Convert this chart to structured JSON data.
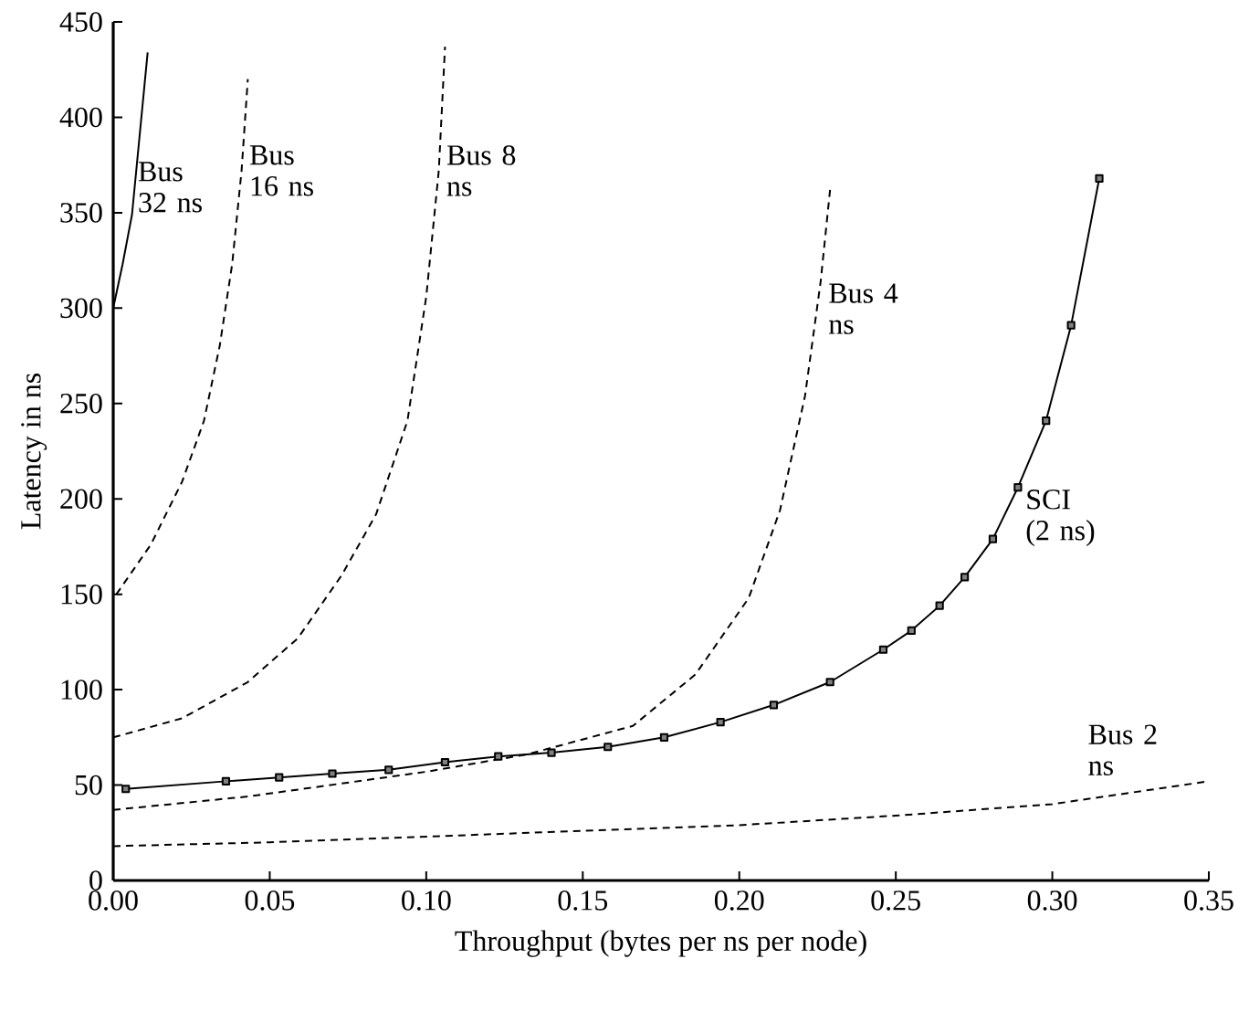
{
  "chart_data": {
    "type": "line",
    "xlabel": "Throughput (bytes per ns per node)",
    "ylabel": "Latency in ns",
    "xlim": [
      0,
      0.35
    ],
    "ylim": [
      0,
      450
    ],
    "xticks": [
      {
        "value": 0,
        "label": "0.00"
      },
      {
        "value": 0.05,
        "label": "0.05"
      },
      {
        "value": 0.1,
        "label": "0.10"
      },
      {
        "value": 0.15,
        "label": "0.15"
      },
      {
        "value": 0.2,
        "label": "0.20"
      },
      {
        "value": 0.25,
        "label": "0.25"
      },
      {
        "value": 0.3,
        "label": "0.30"
      },
      {
        "value": 0.35,
        "label": "0.35"
      }
    ],
    "yticks": [
      0,
      50,
      100,
      150,
      200,
      250,
      300,
      350,
      400,
      450
    ],
    "grid": false,
    "legend": false,
    "series": [
      {
        "name": "Bus 32 ns",
        "color": "#000000",
        "line_style": "solid",
        "marker": "none",
        "x": [
          0,
          0.003,
          0.006,
          0.011
        ],
        "values": [
          300,
          323,
          349,
          434
        ]
      },
      {
        "name": "Bus 16 ns",
        "color": "#000000",
        "line_style": "dashed",
        "marker": "none",
        "x": [
          0.001,
          0.012,
          0.022,
          0.029,
          0.034,
          0.038,
          0.041,
          0.043
        ],
        "values": [
          150,
          176,
          209,
          241,
          280,
          323,
          372,
          420
        ]
      },
      {
        "name": "Bus 8 ns",
        "color": "#000000",
        "line_style": "dashed",
        "marker": "none",
        "x": [
          0,
          0.022,
          0.043,
          0.059,
          0.073,
          0.084,
          0.094,
          0.1,
          0.104,
          0.106
        ],
        "values": [
          75,
          85,
          104,
          127,
          160,
          192,
          241,
          306,
          372,
          437
        ]
      },
      {
        "name": "Bus 4 ns",
        "color": "#000000",
        "line_style": "dashed",
        "marker": "none",
        "x": [
          0,
          0.043,
          0.1,
          0.132,
          0.166,
          0.186,
          0.203,
          0.213,
          0.221,
          0.226,
          0.229
        ],
        "values": [
          37,
          44,
          57,
          66,
          81,
          108,
          148,
          194,
          254,
          314,
          362
        ]
      },
      {
        "name": "Bus 2 ns",
        "color": "#000000",
        "line_style": "dashed",
        "marker": "none",
        "x": [
          0,
          0.05,
          0.1,
          0.15,
          0.2,
          0.25,
          0.3,
          0.35
        ],
        "values": [
          18,
          20,
          23,
          26,
          29,
          34,
          40,
          52
        ]
      },
      {
        "name": "SCI (2 ns)",
        "color": "#000000",
        "line_style": "solid",
        "marker": "square",
        "x": [
          0.004,
          0.036,
          0.053,
          0.07,
          0.088,
          0.106,
          0.123,
          0.14,
          0.158,
          0.176,
          0.194,
          0.211,
          0.229,
          0.246,
          0.255,
          0.264,
          0.272,
          0.281,
          0.289,
          0.298,
          0.306,
          0.315
        ],
        "values": [
          48,
          52,
          54,
          56,
          58,
          62,
          65,
          67,
          70,
          75,
          83,
          92,
          104,
          121,
          131,
          144,
          159,
          179,
          206,
          241,
          291,
          368
        ]
      }
    ]
  }
}
